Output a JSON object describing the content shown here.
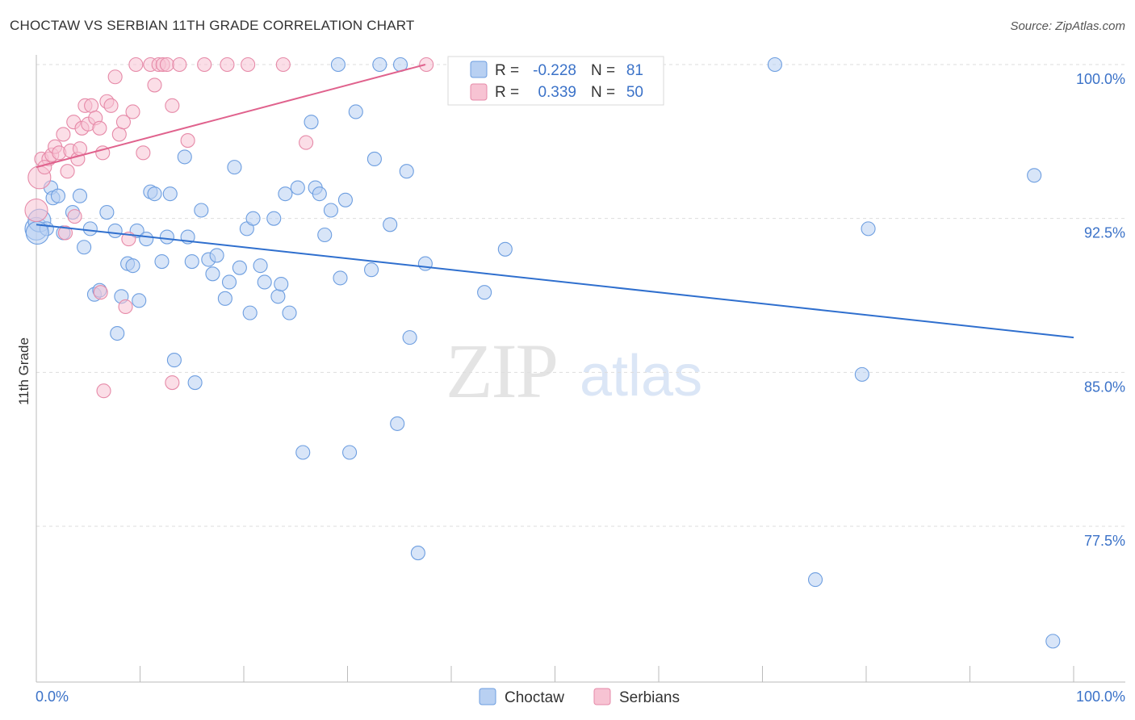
{
  "title": "CHOCTAW VS SERBIAN 11TH GRADE CORRELATION CHART",
  "source": "Source: ZipAtlas.com",
  "watermark": {
    "zip": "ZIP",
    "atlas": "atlas"
  },
  "colors": {
    "choctaw_fill": "#b8d0f2",
    "choctaw_stroke": "#6d9ee0",
    "choctaw_line": "#2f6fce",
    "serbian_fill": "#f7c3d3",
    "serbian_stroke": "#e68aa8",
    "serbian_line": "#e0628d",
    "grid": "#dddddd",
    "tick_label": "#3b72c8"
  },
  "legend_top": {
    "rows": [
      {
        "series": "Choctaw",
        "r_label": "R =",
        "r_value": "-0.228",
        "n_label": "N =",
        "n_value": "81"
      },
      {
        "series": "Serbians",
        "r_label": "R =",
        "r_value": "0.339",
        "n_label": "N =",
        "n_value": "50"
      }
    ]
  },
  "legend_bottom": [
    "Choctaw",
    "Serbians"
  ],
  "chart_data": {
    "type": "scatter",
    "title": "CHOCTAW VS SERBIAN 11TH GRADE CORRELATION CHART",
    "xlabel": "",
    "ylabel": "11th Grade",
    "xlim": [
      0,
      100
    ],
    "ylim": [
      70.5,
      100.8
    ],
    "x_tick_labels": [
      "0.0%",
      "100.0%"
    ],
    "y_ticks": [
      100.0,
      92.5,
      85.0,
      77.5
    ],
    "y_tick_labels": [
      "100.0%",
      "92.5%",
      "85.0%",
      "77.5%"
    ],
    "grid": true,
    "series": [
      {
        "name": "Choctaw",
        "r": -0.228,
        "n": 81,
        "trend": {
          "x": [
            0,
            100
          ],
          "y": [
            92.2,
            86.7
          ]
        },
        "points": [
          [
            0.0,
            92.0
          ],
          [
            0.3,
            92.4
          ],
          [
            1.0,
            92.0
          ],
          [
            1.4,
            94.0
          ],
          [
            1.6,
            93.5
          ],
          [
            2.1,
            93.6
          ],
          [
            2.6,
            91.8
          ],
          [
            3.5,
            92.8
          ],
          [
            4.2,
            93.6
          ],
          [
            4.6,
            91.1
          ],
          [
            5.2,
            92.0
          ],
          [
            5.6,
            88.8
          ],
          [
            6.1,
            89.0
          ],
          [
            6.8,
            92.8
          ],
          [
            7.6,
            91.9
          ],
          [
            7.8,
            86.9
          ],
          [
            8.2,
            88.7
          ],
          [
            8.8,
            90.3
          ],
          [
            9.3,
            90.2
          ],
          [
            9.7,
            91.9
          ],
          [
            9.9,
            88.5
          ],
          [
            10.6,
            91.5
          ],
          [
            11.0,
            93.8
          ],
          [
            11.4,
            93.7
          ],
          [
            12.1,
            90.4
          ],
          [
            12.6,
            91.6
          ],
          [
            12.9,
            93.7
          ],
          [
            13.3,
            85.6
          ],
          [
            14.3,
            95.5
          ],
          [
            14.6,
            91.6
          ],
          [
            15.0,
            90.4
          ],
          [
            15.3,
            84.5
          ],
          [
            15.9,
            92.9
          ],
          [
            16.6,
            90.5
          ],
          [
            17.0,
            89.8
          ],
          [
            17.4,
            90.7
          ],
          [
            18.2,
            88.6
          ],
          [
            18.6,
            89.4
          ],
          [
            19.1,
            95.0
          ],
          [
            19.6,
            90.1
          ],
          [
            20.3,
            92.0
          ],
          [
            20.6,
            87.9
          ],
          [
            20.9,
            92.5
          ],
          [
            21.6,
            90.2
          ],
          [
            22.0,
            89.4
          ],
          [
            22.9,
            92.5
          ],
          [
            23.3,
            88.7
          ],
          [
            23.6,
            89.3
          ],
          [
            24.0,
            93.7
          ],
          [
            24.4,
            87.9
          ],
          [
            25.2,
            94.0
          ],
          [
            25.7,
            81.1
          ],
          [
            26.5,
            97.2
          ],
          [
            26.9,
            94.0
          ],
          [
            27.3,
            93.7
          ],
          [
            27.8,
            91.7
          ],
          [
            28.4,
            92.9
          ],
          [
            29.1,
            100.0
          ],
          [
            29.3,
            89.6
          ],
          [
            29.8,
            93.4
          ],
          [
            30.2,
            81.1
          ],
          [
            30.8,
            97.7
          ],
          [
            32.3,
            90.0
          ],
          [
            32.6,
            95.4
          ],
          [
            33.1,
            100.0
          ],
          [
            34.1,
            92.2
          ],
          [
            34.8,
            82.5
          ],
          [
            35.1,
            100.0
          ],
          [
            35.7,
            94.8
          ],
          [
            36.0,
            86.7
          ],
          [
            36.8,
            76.2
          ],
          [
            37.5,
            90.3
          ],
          [
            43.2,
            88.9
          ],
          [
            45.2,
            91.0
          ],
          [
            71.2,
            100.0
          ],
          [
            75.1,
            74.9
          ],
          [
            79.6,
            84.9
          ],
          [
            80.2,
            92.0
          ],
          [
            96.2,
            94.6
          ],
          [
            98.0,
            71.9
          ],
          [
            0.1,
            91.8
          ]
        ]
      },
      {
        "name": "Serbians",
        "r": 0.339,
        "n": 50,
        "trend": {
          "x": [
            0,
            37.5
          ],
          "y": [
            95.0,
            100.0
          ]
        },
        "points": [
          [
            0.0,
            92.9
          ],
          [
            0.3,
            94.5
          ],
          [
            0.5,
            95.4
          ],
          [
            1.2,
            95.4
          ],
          [
            1.5,
            95.6
          ],
          [
            1.8,
            96.0
          ],
          [
            2.2,
            95.7
          ],
          [
            2.6,
            96.6
          ],
          [
            3.0,
            94.8
          ],
          [
            3.3,
            95.8
          ],
          [
            3.6,
            97.2
          ],
          [
            4.0,
            95.4
          ],
          [
            4.4,
            96.9
          ],
          [
            4.7,
            98.0
          ],
          [
            5.0,
            97.1
          ],
          [
            5.3,
            98.0
          ],
          [
            5.7,
            97.4
          ],
          [
            6.1,
            96.9
          ],
          [
            6.4,
            95.7
          ],
          [
            6.8,
            98.2
          ],
          [
            7.2,
            98.0
          ],
          [
            7.6,
            99.4
          ],
          [
            8.0,
            96.6
          ],
          [
            8.4,
            97.2
          ],
          [
            8.9,
            91.5
          ],
          [
            9.3,
            97.7
          ],
          [
            9.6,
            100.0
          ],
          [
            10.3,
            95.7
          ],
          [
            11.0,
            100.0
          ],
          [
            11.4,
            99.0
          ],
          [
            11.8,
            100.0
          ],
          [
            12.2,
            100.0
          ],
          [
            12.6,
            100.0
          ],
          [
            13.1,
            98.0
          ],
          [
            13.8,
            100.0
          ],
          [
            14.6,
            96.3
          ],
          [
            16.2,
            100.0
          ],
          [
            18.4,
            100.0
          ],
          [
            20.4,
            100.0
          ],
          [
            23.8,
            100.0
          ],
          [
            26.0,
            96.2
          ],
          [
            37.6,
            100.0
          ],
          [
            2.8,
            91.8
          ],
          [
            3.7,
            92.6
          ],
          [
            6.2,
            88.9
          ],
          [
            8.6,
            88.2
          ],
          [
            6.5,
            84.1
          ],
          [
            13.1,
            84.5
          ],
          [
            4.2,
            95.9
          ],
          [
            0.8,
            95.0
          ]
        ]
      }
    ]
  }
}
